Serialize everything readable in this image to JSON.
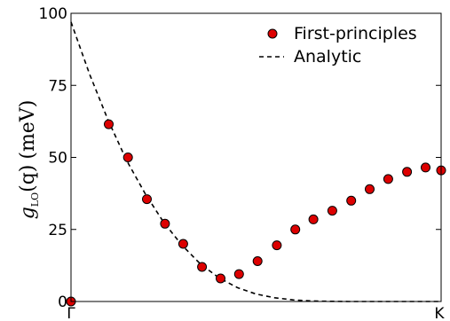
{
  "chart_data": {
    "type": "scatter",
    "ylabel": {
      "symbol": "g",
      "subscript": "LO",
      "argument": "(q)",
      "unit": "(meV)"
    },
    "xticks": [
      "Γ",
      "K"
    ],
    "yticks": [
      0,
      25,
      50,
      75,
      100
    ],
    "xlim": [
      0,
      1
    ],
    "ylim": [
      0,
      100
    ],
    "legend_position": "top-right",
    "grid": false,
    "series": [
      {
        "name": "First-principles",
        "kind": "markers",
        "color": "#dd0000",
        "x": [
          0.0,
          0.102,
          0.154,
          0.205,
          0.254,
          0.303,
          0.354,
          0.404,
          0.454,
          0.504,
          0.556,
          0.606,
          0.655,
          0.706,
          0.757,
          0.807,
          0.857,
          0.908,
          0.958,
          1.0
        ],
        "y": [
          0.0,
          61.5,
          50.0,
          35.5,
          27.0,
          20.0,
          12.0,
          8.0,
          9.5,
          14.0,
          19.5,
          25.0,
          28.5,
          31.5,
          35.0,
          39.0,
          42.5,
          45.0,
          46.5,
          45.5
        ]
      },
      {
        "name": "Analytic",
        "kind": "dashed-line",
        "color": "#000000",
        "x": [
          0.0,
          0.05,
          0.1,
          0.15,
          0.2,
          0.25,
          0.3,
          0.35,
          0.4,
          0.45,
          0.5,
          0.55,
          0.6,
          0.65,
          0.7,
          0.75,
          0.8,
          0.85,
          0.9,
          0.95,
          1.0
        ],
        "y": [
          97.0,
          79.0,
          63.0,
          49.0,
          37.5,
          27.5,
          19.5,
          13.0,
          8.2,
          4.8,
          2.6,
          1.3,
          0.55,
          0.2,
          0.05,
          0.0,
          0.0,
          0.0,
          0.0,
          0.0,
          0.0
        ]
      }
    ]
  }
}
